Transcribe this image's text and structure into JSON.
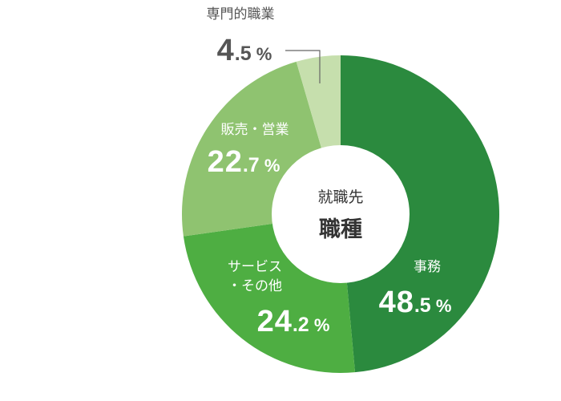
{
  "chart_data": {
    "type": "pie",
    "title": "",
    "center_label": {
      "line1": "就職先",
      "line2": "職種"
    },
    "slices": [
      {
        "label": "事務",
        "label_lines": [
          "事務"
        ],
        "value": 48.5,
        "int": "48",
        "dec": ".5",
        "unit": "%",
        "color": "#2b8a3e"
      },
      {
        "label": "サービス・その他",
        "label_lines": [
          "サービス",
          "・その他"
        ],
        "value": 24.2,
        "int": "24",
        "dec": ".2",
        "unit": "%",
        "color": "#4eae42"
      },
      {
        "label": "販売・営業",
        "label_lines": [
          "販売・営業"
        ],
        "value": 22.7,
        "int": "22",
        "dec": ".7",
        "unit": "%",
        "color": "#8fc370"
      },
      {
        "label": "専門的職業",
        "label_lines": [
          "専門的職業"
        ],
        "value": 4.5,
        "int": "4",
        "dec": ".5",
        "unit": "%",
        "color": "#c6dfad"
      }
    ],
    "start_angle": "top",
    "direction": "clockwise",
    "text_color_inside": "#ffffff",
    "text_color_outside": "#555555",
    "leader_line_color": "#666666"
  }
}
